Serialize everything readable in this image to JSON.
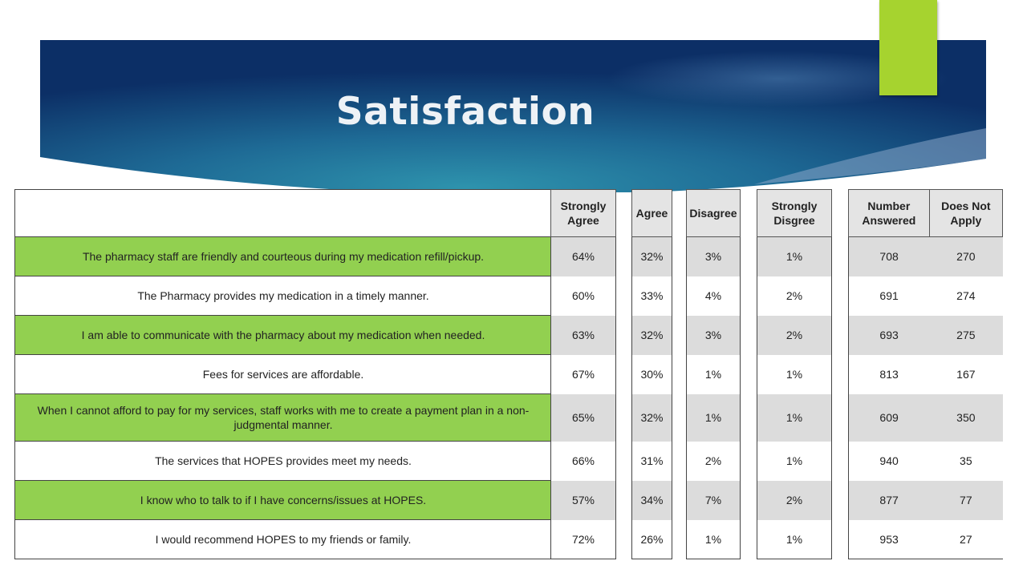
{
  "slide": {
    "title": "Satisfaction",
    "colors": {
      "banner_dark": "#0c2f66",
      "banner_light": "#2a8aa6",
      "accent": "#a6d32f",
      "row_green": "#92d050",
      "row_gray": "#dcdcdc"
    }
  },
  "table": {
    "headers": {
      "strongly_agree": "Strongly Agree",
      "agree": "Agree",
      "disagree": "Disagree",
      "strongly_disagree": "Strongly Disgree",
      "number_answered": "Number Answered",
      "does_not_apply": "Does Not Apply"
    },
    "rows": [
      {
        "question": "The pharmacy staff are friendly and courteous during my medication refill/pickup.",
        "sa": "64%",
        "a": "32%",
        "d": "3%",
        "sd": "1%",
        "n": "708",
        "dna": "270"
      },
      {
        "question": "The Pharmacy provides my medication in a timely manner.",
        "sa": "60%",
        "a": "33%",
        "d": "4%",
        "sd": "2%",
        "n": "691",
        "dna": "274"
      },
      {
        "question": "I am able to communicate with the pharmacy about my medication when needed.",
        "sa": "63%",
        "a": "32%",
        "d": "3%",
        "sd": "2%",
        "n": "693",
        "dna": "275"
      },
      {
        "question": "Fees for services are affordable.",
        "sa": "67%",
        "a": "30%",
        "d": "1%",
        "sd": "1%",
        "n": "813",
        "dna": "167"
      },
      {
        "question": "When I cannot afford to pay for my services, staff works with me to create a payment plan in a non-judgmental manner.",
        "sa": "65%",
        "a": "32%",
        "d": "1%",
        "sd": "1%",
        "n": "609",
        "dna": "350"
      },
      {
        "question": "The services that HOPES provides meet my needs.",
        "sa": "66%",
        "a": "31%",
        "d": "2%",
        "sd": "1%",
        "n": "940",
        "dna": "35"
      },
      {
        "question": "I know who to talk to if I have concerns/issues at HOPES.",
        "sa": "57%",
        "a": "34%",
        "d": "7%",
        "sd": "2%",
        "n": "877",
        "dna": "77"
      },
      {
        "question": "I would recommend HOPES to my friends or family.",
        "sa": "72%",
        "a": "26%",
        "d": "1%",
        "sd": "1%",
        "n": "953",
        "dna": "27"
      }
    ]
  }
}
